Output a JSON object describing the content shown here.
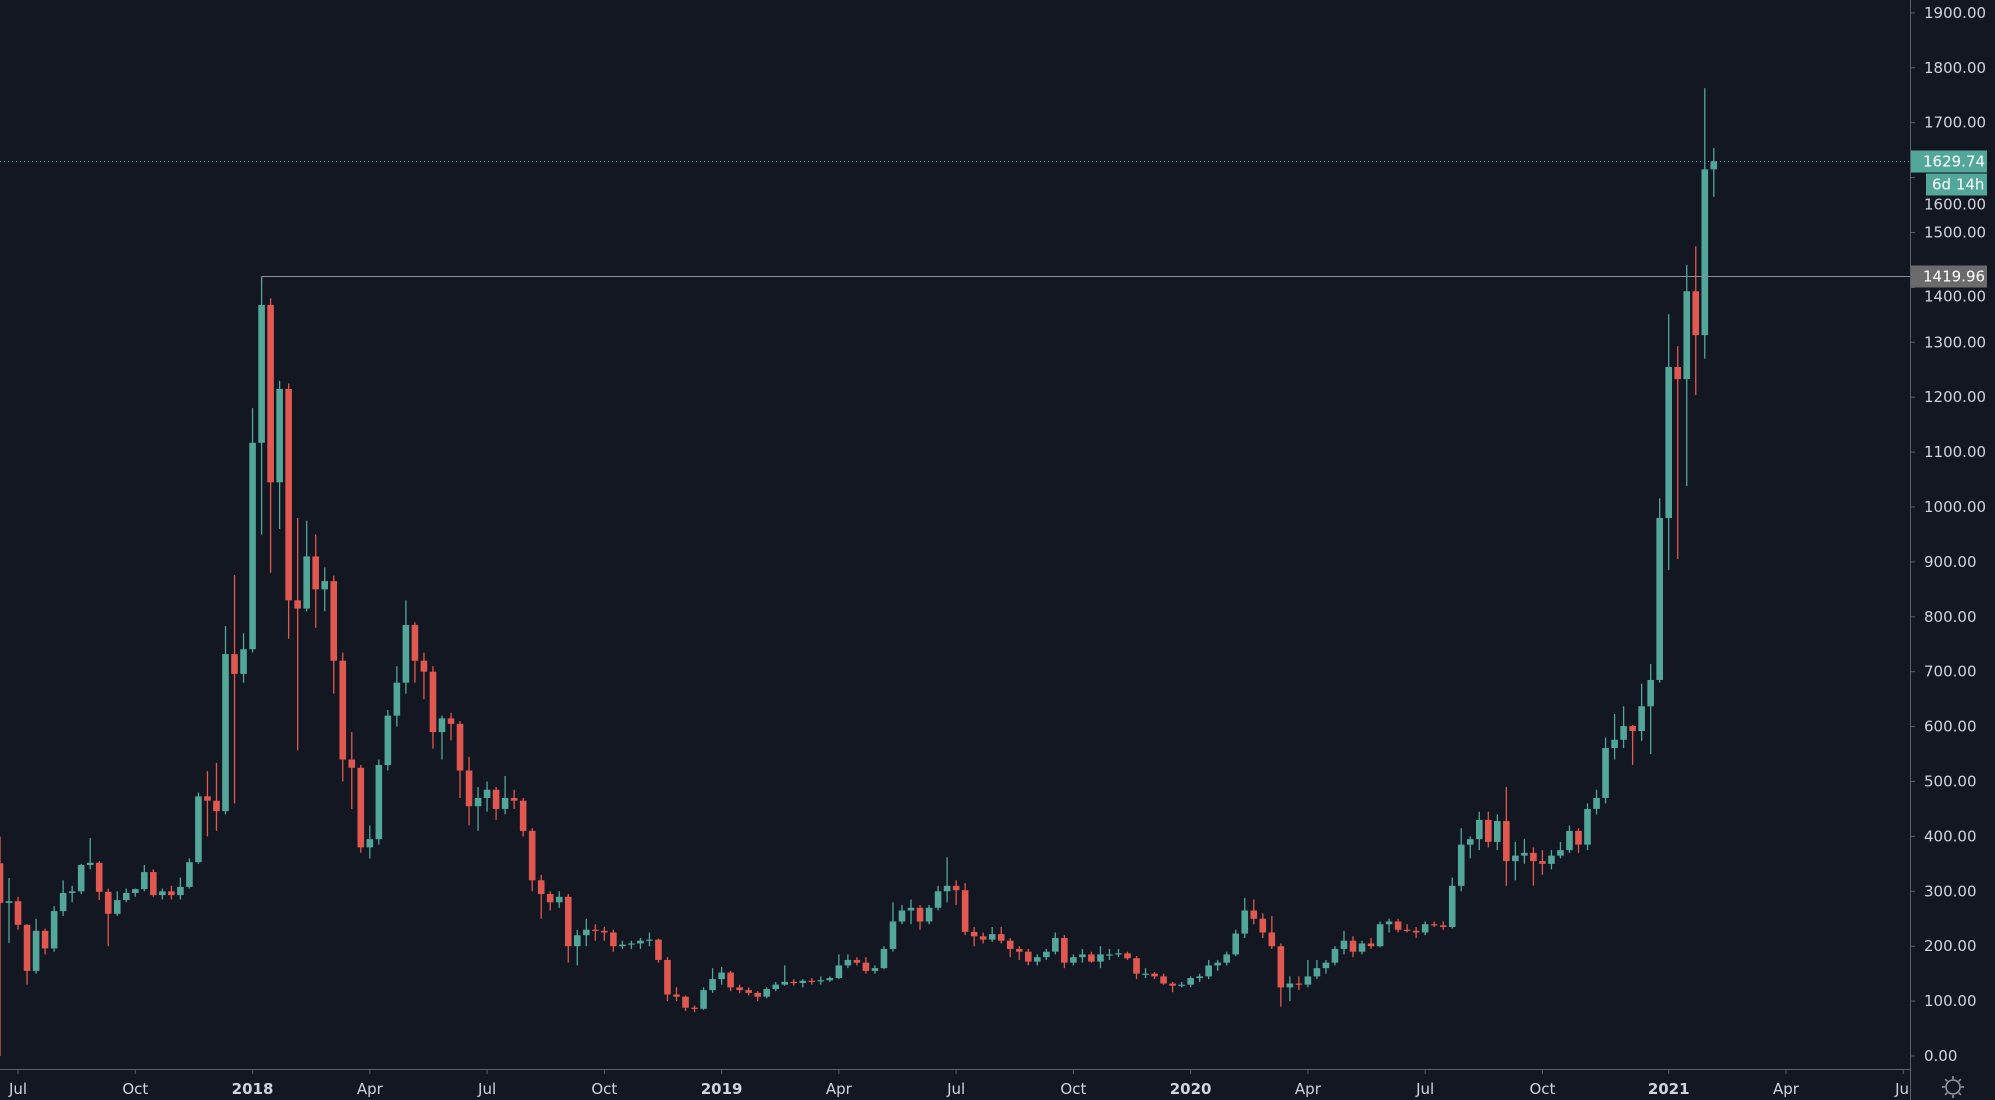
{
  "chart_data": {
    "type": "candlestick",
    "interval": "weekly",
    "first_week": "2017-06-19",
    "ohlc_columns": [
      "open",
      "high",
      "low",
      "close"
    ],
    "candles": [
      [
        351,
        400,
        0.1,
        279
      ],
      [
        279,
        324,
        206,
        282
      ],
      [
        282,
        290,
        230,
        239
      ],
      [
        239,
        240,
        130,
        155
      ],
      [
        155,
        250,
        150,
        228
      ],
      [
        228,
        232,
        185,
        196
      ],
      [
        196,
        273,
        190,
        264
      ],
      [
        264,
        320,
        255,
        297
      ],
      [
        297,
        310,
        280,
        300
      ],
      [
        300,
        350,
        295,
        348
      ],
      [
        348,
        397,
        340,
        352
      ],
      [
        352,
        355,
        284,
        299
      ],
      [
        299,
        305,
        200,
        259
      ],
      [
        259,
        300,
        255,
        284
      ],
      [
        284,
        305,
        280,
        297
      ],
      [
        297,
        305,
        290,
        304
      ],
      [
        304,
        348,
        300,
        335
      ],
      [
        335,
        340,
        290,
        293
      ],
      [
        293,
        305,
        285,
        300
      ],
      [
        300,
        310,
        285,
        293
      ],
      [
        293,
        325,
        285,
        308
      ],
      [
        308,
        360,
        305,
        353
      ],
      [
        353,
        480,
        350,
        473
      ],
      [
        473,
        519,
        400,
        465
      ],
      [
        465,
        534,
        410,
        446
      ],
      [
        446,
        783,
        440,
        732
      ],
      [
        732,
        876,
        460,
        696
      ],
      [
        696,
        770,
        680,
        741
      ],
      [
        741,
        1180,
        735,
        1117
      ],
      [
        1117,
        1419.96,
        950,
        1368
      ],
      [
        1368,
        1380,
        880,
        1045
      ],
      [
        1045,
        1230,
        960,
        1215
      ],
      [
        1215,
        1225,
        760,
        830
      ],
      [
        830,
        980,
        557,
        815
      ],
      [
        815,
        975,
        810,
        910
      ],
      [
        910,
        950,
        780,
        850
      ],
      [
        850,
        890,
        810,
        865
      ],
      [
        865,
        875,
        660,
        720
      ],
      [
        720,
        735,
        500,
        540
      ],
      [
        540,
        590,
        450,
        525
      ],
      [
        525,
        530,
        370,
        380
      ],
      [
        380,
        420,
        360,
        395
      ],
      [
        395,
        540,
        385,
        530
      ],
      [
        530,
        630,
        520,
        620
      ],
      [
        620,
        710,
        600,
        680
      ],
      [
        680,
        830,
        660,
        785
      ],
      [
        785,
        790,
        680,
        720
      ],
      [
        720,
        735,
        650,
        700
      ],
      [
        700,
        710,
        560,
        590
      ],
      [
        590,
        620,
        540,
        615
      ],
      [
        615,
        625,
        575,
        605
      ],
      [
        605,
        610,
        470,
        520
      ],
      [
        520,
        545,
        420,
        455
      ],
      [
        455,
        490,
        410,
        470
      ],
      [
        470,
        500,
        445,
        485
      ],
      [
        485,
        490,
        430,
        450
      ],
      [
        450,
        510,
        440,
        470
      ],
      [
        470,
        485,
        450,
        465
      ],
      [
        465,
        470,
        400,
        410
      ],
      [
        410,
        415,
        300,
        320
      ],
      [
        320,
        330,
        250,
        295
      ],
      [
        295,
        300,
        265,
        280
      ],
      [
        280,
        300,
        270,
        290
      ],
      [
        290,
        295,
        170,
        200
      ],
      [
        200,
        230,
        165,
        220
      ],
      [
        220,
        250,
        200,
        230
      ],
      [
        230,
        240,
        210,
        228
      ],
      [
        228,
        235,
        210,
        225
      ],
      [
        225,
        230,
        190,
        200
      ],
      [
        200,
        210,
        195,
        203
      ],
      [
        203,
        210,
        195,
        205
      ],
      [
        205,
        215,
        195,
        210
      ],
      [
        210,
        225,
        200,
        212
      ],
      [
        212,
        214,
        170,
        175
      ],
      [
        175,
        180,
        100,
        112
      ],
      [
        112,
        125,
        100,
        108
      ],
      [
        108,
        110,
        82,
        88
      ],
      [
        88,
        92,
        80,
        86
      ],
      [
        86,
        125,
        84,
        120
      ],
      [
        120,
        160,
        115,
        140
      ],
      [
        140,
        162,
        130,
        152
      ],
      [
        152,
        155,
        118,
        125
      ],
      [
        125,
        130,
        115,
        120
      ],
      [
        120,
        125,
        110,
        115
      ],
      [
        115,
        118,
        100,
        108
      ],
      [
        108,
        125,
        105,
        122
      ],
      [
        122,
        135,
        118,
        130
      ],
      [
        130,
        165,
        128,
        135
      ],
      [
        135,
        140,
        128,
        133
      ],
      [
        133,
        140,
        125,
        137
      ],
      [
        137,
        142,
        130,
        136
      ],
      [
        136,
        145,
        130,
        138
      ],
      [
        138,
        145,
        135,
        142
      ],
      [
        142,
        185,
        140,
        165
      ],
      [
        165,
        185,
        160,
        175
      ],
      [
        175,
        180,
        165,
        170
      ],
      [
        170,
        180,
        150,
        155
      ],
      [
        155,
        165,
        150,
        160
      ],
      [
        160,
        200,
        158,
        195
      ],
      [
        195,
        280,
        190,
        245
      ],
      [
        245,
        275,
        240,
        265
      ],
      [
        265,
        285,
        240,
        270
      ],
      [
        270,
        275,
        230,
        245
      ],
      [
        245,
        275,
        240,
        270
      ],
      [
        270,
        310,
        265,
        300
      ],
      [
        300,
        362,
        280,
        310
      ],
      [
        310,
        320,
        275,
        302
      ],
      [
        302,
        315,
        220,
        226
      ],
      [
        226,
        235,
        200,
        218
      ],
      [
        218,
        225,
        205,
        212
      ],
      [
        212,
        235,
        208,
        222
      ],
      [
        222,
        235,
        205,
        210
      ],
      [
        210,
        215,
        180,
        195
      ],
      [
        195,
        200,
        175,
        190
      ],
      [
        190,
        195,
        165,
        172
      ],
      [
        172,
        185,
        165,
        180
      ],
      [
        180,
        195,
        175,
        190
      ],
      [
        190,
        225,
        185,
        215
      ],
      [
        215,
        220,
        160,
        170
      ],
      [
        170,
        185,
        165,
        180
      ],
      [
        180,
        195,
        170,
        185
      ],
      [
        185,
        190,
        170,
        172
      ],
      [
        172,
        200,
        160,
        185
      ],
      [
        185,
        195,
        175,
        185
      ],
      [
        185,
        195,
        180,
        187
      ],
      [
        187,
        190,
        175,
        178
      ],
      [
        178,
        182,
        140,
        150
      ],
      [
        150,
        160,
        142,
        150
      ],
      [
        150,
        153,
        140,
        145
      ],
      [
        145,
        150,
        130,
        132
      ],
      [
        132,
        135,
        116,
        128
      ],
      [
        128,
        135,
        125,
        130
      ],
      [
        130,
        145,
        125,
        142
      ],
      [
        142,
        150,
        135,
        145
      ],
      [
        145,
        175,
        140,
        165
      ],
      [
        165,
        175,
        155,
        170
      ],
      [
        170,
        190,
        165,
        185
      ],
      [
        185,
        230,
        182,
        223
      ],
      [
        223,
        288,
        215,
        265
      ],
      [
        265,
        285,
        240,
        250
      ],
      [
        250,
        260,
        215,
        225
      ],
      [
        225,
        255,
        195,
        200
      ],
      [
        200,
        205,
        90,
        125
      ],
      [
        125,
        145,
        100,
        132
      ],
      [
        132,
        145,
        120,
        130
      ],
      [
        130,
        175,
        125,
        145
      ],
      [
        145,
        175,
        140,
        160
      ],
      [
        160,
        175,
        150,
        170
      ],
      [
        170,
        200,
        165,
        195
      ],
      [
        195,
        228,
        185,
        210
      ],
      [
        210,
        218,
        180,
        190
      ],
      [
        190,
        210,
        185,
        205
      ],
      [
        205,
        215,
        195,
        200
      ],
      [
        200,
        245,
        198,
        240
      ],
      [
        240,
        250,
        225,
        245
      ],
      [
        245,
        250,
        225,
        230
      ],
      [
        230,
        240,
        225,
        228
      ],
      [
        228,
        235,
        215,
        225
      ],
      [
        225,
        245,
        220,
        240
      ],
      [
        240,
        245,
        235,
        238
      ],
      [
        238,
        245,
        230,
        235
      ],
      [
        235,
        325,
        232,
        310
      ],
      [
        310,
        415,
        300,
        385
      ],
      [
        385,
        400,
        360,
        395
      ],
      [
        395,
        445,
        375,
        430
      ],
      [
        430,
        445,
        380,
        390
      ],
      [
        390,
        440,
        375,
        428
      ],
      [
        428,
        490,
        310,
        355
      ],
      [
        355,
        390,
        320,
        365
      ],
      [
        365,
        395,
        350,
        370
      ],
      [
        370,
        380,
        310,
        355
      ],
      [
        355,
        375,
        330,
        350
      ],
      [
        350,
        375,
        340,
        365
      ],
      [
        365,
        390,
        360,
        375
      ],
      [
        375,
        420,
        370,
        410
      ],
      [
        410,
        415,
        370,
        385
      ],
      [
        385,
        460,
        375,
        450
      ],
      [
        450,
        485,
        440,
        470
      ],
      [
        470,
        580,
        460,
        561
      ],
      [
        561,
        623,
        540,
        576
      ],
      [
        576,
        637,
        561,
        601
      ],
      [
        601,
        603,
        530,
        592
      ],
      [
        592,
        678,
        574,
        637
      ],
      [
        637,
        714,
        550,
        685
      ],
      [
        685,
        1016,
        680,
        980
      ],
      [
        980,
        1351,
        885,
        1255
      ],
      [
        1255,
        1293,
        905,
        1233
      ],
      [
        1233,
        1441,
        1038,
        1393
      ],
      [
        1393,
        1475,
        1204,
        1313
      ],
      [
        1313,
        1763,
        1270,
        1615
      ],
      [
        1615,
        1654,
        1565,
        1629.74
      ]
    ],
    "y_ticks": [
      "0.00",
      "100.00",
      "200.00",
      "300.00",
      "400.00",
      "500.00",
      "600.00",
      "700.00",
      "800.00",
      "900.00",
      "1000.00",
      "1100.00",
      "1200.00",
      "1300.00",
      "1400.00",
      "1500.00",
      "1600.00",
      "1700.00",
      "1800.00",
      "1900.00"
    ],
    "ylim": [
      0,
      1900
    ],
    "x_ticks": [
      {
        "label": "Jul",
        "date": "2017-07-03"
      },
      {
        "label": "Oct",
        "date": "2017-10-02"
      },
      {
        "label": "2018",
        "date": "2018-01-01"
      },
      {
        "label": "Apr",
        "date": "2018-04-02"
      },
      {
        "label": "Jul",
        "date": "2018-07-02"
      },
      {
        "label": "Oct",
        "date": "2018-10-01"
      },
      {
        "label": "2019",
        "date": "2018-12-31"
      },
      {
        "label": "Apr",
        "date": "2019-04-01"
      },
      {
        "label": "Jul",
        "date": "2019-07-01"
      },
      {
        "label": "Oct",
        "date": "2019-09-30"
      },
      {
        "label": "2020",
        "date": "2019-12-30"
      },
      {
        "label": "Apr",
        "date": "2020-03-30"
      },
      {
        "label": "Jul",
        "date": "2020-06-29"
      },
      {
        "label": "Oct",
        "date": "2020-09-28"
      },
      {
        "label": "2021",
        "date": "2021-01-04"
      },
      {
        "label": "Apr",
        "date": "2021-04-05"
      },
      {
        "label": "Ju",
        "date": "2021-07-05"
      }
    ],
    "grid": false,
    "colors": {
      "background": "#131722",
      "up": "#53a69a",
      "down": "#e0584f",
      "axis_text": "#d1d4dc",
      "axis_line": "#5d606b",
      "level_line": "#8a8d96"
    },
    "last_price": {
      "value": "1629.74",
      "countdown": "6d 14h",
      "color": "#53a69a"
    },
    "level_line": {
      "value": "1419.96",
      "label": "1419.96",
      "from_date": "2018-01-08",
      "color": "#6b6b6b"
    }
  },
  "toolbar": {
    "settings_icon": "gear-icon"
  }
}
